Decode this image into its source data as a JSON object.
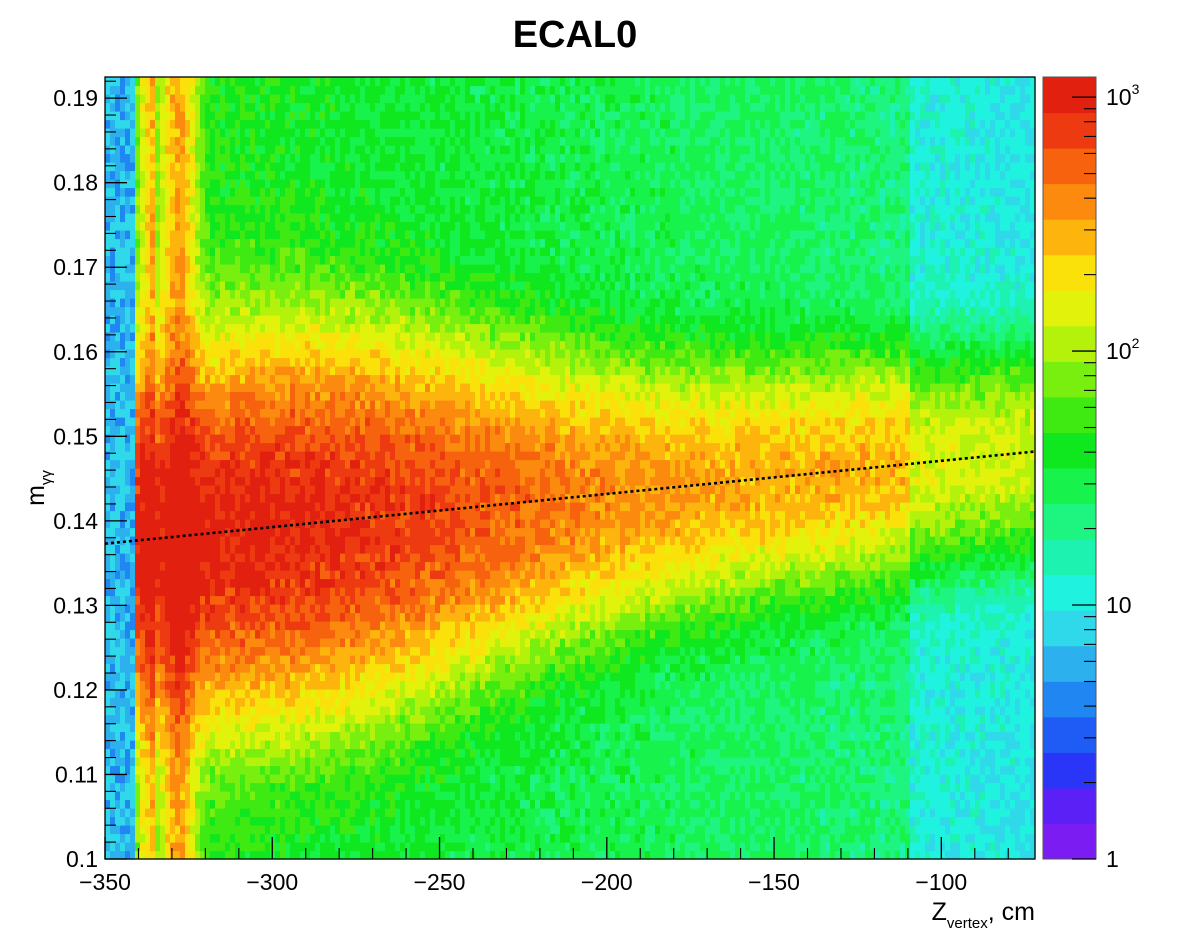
{
  "chart_data": {
    "type": "heatmap",
    "title": "ECAL0",
    "xlabel": {
      "main": "Z",
      "sub": "vertex",
      "suffix": ", cm"
    },
    "ylabel": {
      "main": "m",
      "sub": "γγ"
    },
    "xlim": [
      -350,
      -72
    ],
    "ylim": [
      0.1,
      0.1925
    ],
    "x_ticks": [
      -350,
      -300,
      -250,
      -200,
      -150,
      -100
    ],
    "x_tick_labels": [
      "−350",
      "−300",
      "−250",
      "−200",
      "−150",
      "−100"
    ],
    "y_ticks": [
      0.1,
      0.11,
      0.12,
      0.13,
      0.14,
      0.15,
      0.16,
      0.17,
      0.18,
      0.19
    ],
    "y_tick_labels": [
      "0.1",
      "0.11",
      "0.12",
      "0.13",
      "0.14",
      "0.15",
      "0.16",
      "0.17",
      "0.18",
      "0.19"
    ],
    "z_scale": "log",
    "zlim": [
      1,
      1200
    ],
    "z_tick_labels": [
      {
        "value": 1,
        "base": "1",
        "exp": ""
      },
      {
        "value": 10,
        "base": "10",
        "exp": ""
      },
      {
        "value": 100,
        "base": "10",
        "exp": "2"
      },
      {
        "value": 1000,
        "base": "10",
        "exp": "3"
      }
    ],
    "palette": [
      "#7a1cf2",
      "#5a20f5",
      "#2a36f7",
      "#1f5cf5",
      "#1f86f2",
      "#2cb1ee",
      "#2fd9ea",
      "#20f2e0",
      "#1ef2b0",
      "#1ef580",
      "#17f24d",
      "#0fe81e",
      "#3fea12",
      "#78ef0e",
      "#b4f20c",
      "#e2f20a",
      "#fbe10a",
      "#fdb40d",
      "#fb8a0f",
      "#f6620e",
      "#ee3a10",
      "#e2200f"
    ],
    "fit_line": {
      "style": "dashed",
      "color": "#000000",
      "points": [
        [
          -350,
          0.1373
        ],
        [
          -72,
          0.1482
        ]
      ]
    },
    "description_values": {
      "peak_z": -328,
      "peak_mass": 0.14,
      "peak_counts": 1000
    }
  }
}
